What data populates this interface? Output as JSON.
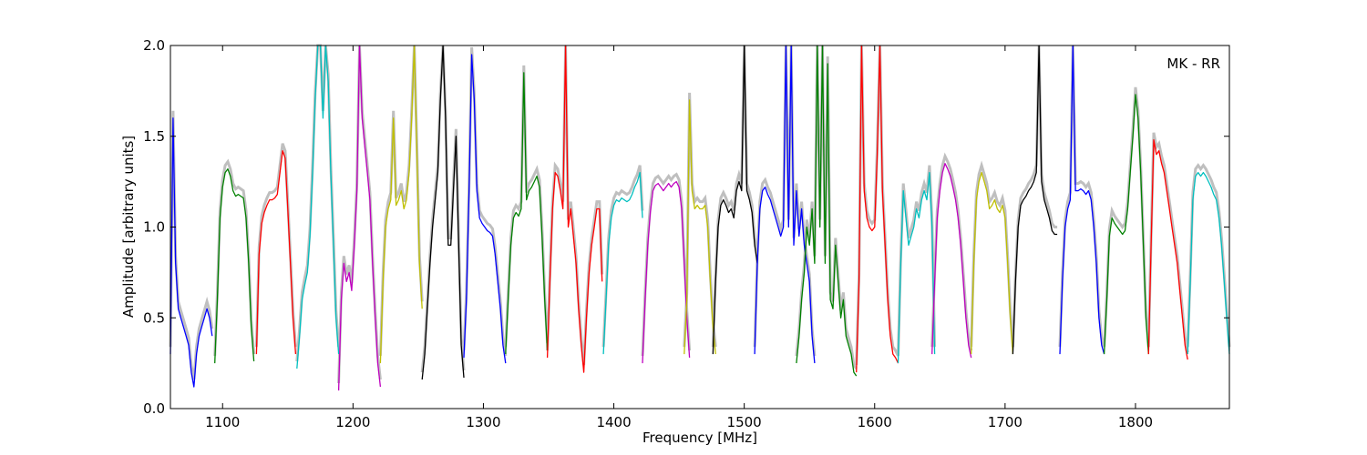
{
  "chart_data": {
    "type": "line",
    "title": "",
    "xlabel": "Frequency [MHz]",
    "ylabel": "Amplitude [arbitrary units]",
    "annotation": "MK - RR",
    "xlim": [
      1060,
      1872
    ],
    "ylim": [
      0.0,
      2.0
    ],
    "xticks": [
      1100,
      1200,
      1300,
      1400,
      1500,
      1600,
      1700,
      1800
    ],
    "yticks": [
      0.0,
      0.5,
      1.0,
      1.5,
      2.0
    ],
    "ytick_labels": [
      "0.0",
      "0.5",
      "1.0",
      "1.5",
      "2.0"
    ],
    "grid": false,
    "background_series_color": "#bfbfbf",
    "series": [
      {
        "color": "#0000ff",
        "x": [
          1060,
          1062,
          1064,
          1066,
          1068,
          1070,
          1072,
          1074,
          1076,
          1078,
          1080,
          1082,
          1084,
          1086,
          1088,
          1090,
          1092
        ],
        "y": [
          0.3,
          1.6,
          0.8,
          0.55,
          0.5,
          0.45,
          0.4,
          0.35,
          0.2,
          0.12,
          0.3,
          0.4,
          0.45,
          0.5,
          0.55,
          0.5,
          0.4
        ]
      },
      {
        "color": "#008000",
        "x": [
          1094,
          1096,
          1098,
          1100,
          1102,
          1104,
          1106,
          1108,
          1110,
          1112,
          1114,
          1116,
          1118,
          1120,
          1122,
          1124
        ],
        "y": [
          0.25,
          0.6,
          1.05,
          1.22,
          1.3,
          1.32,
          1.28,
          1.2,
          1.17,
          1.18,
          1.17,
          1.16,
          1.05,
          0.8,
          0.45,
          0.26
        ]
      },
      {
        "color": "#ff0000",
        "x": [
          1126,
          1128,
          1130,
          1132,
          1134,
          1136,
          1138,
          1140,
          1142,
          1144,
          1146,
          1148,
          1150,
          1152,
          1154,
          1156
        ],
        "y": [
          0.3,
          0.85,
          1.02,
          1.08,
          1.12,
          1.15,
          1.15,
          1.16,
          1.18,
          1.3,
          1.42,
          1.38,
          1.1,
          0.8,
          0.5,
          0.3
        ]
      },
      {
        "color": "#00bfbf",
        "x": [
          1157,
          1159,
          1161,
          1163,
          1165,
          1167,
          1169,
          1171,
          1173,
          1175,
          1177,
          1179,
          1181,
          1183,
          1185,
          1187,
          1189
        ],
        "y": [
          0.22,
          0.4,
          0.6,
          0.68,
          0.75,
          0.95,
          1.3,
          1.7,
          2.0,
          2.0,
          1.6,
          2.0,
          1.8,
          1.3,
          0.9,
          0.5,
          0.3
        ]
      },
      {
        "color": "#bf00bf",
        "x": [
          1189,
          1191,
          1193,
          1195,
          1197,
          1199,
          1201,
          1203,
          1205,
          1207,
          1209,
          1211,
          1213,
          1215,
          1217,
          1219,
          1221
        ],
        "y": [
          0.1,
          0.6,
          0.8,
          0.7,
          0.75,
          0.65,
          0.9,
          1.2,
          2.0,
          1.6,
          1.45,
          1.3,
          1.15,
          0.8,
          0.5,
          0.25,
          0.12
        ]
      },
      {
        "color": "#bfbf00",
        "x": [
          1221,
          1223,
          1225,
          1227,
          1229,
          1231,
          1233,
          1235,
          1237,
          1239,
          1241,
          1243,
          1245,
          1247,
          1249,
          1251,
          1253
        ],
        "y": [
          0.25,
          0.7,
          1.0,
          1.1,
          1.15,
          1.6,
          1.12,
          1.15,
          1.2,
          1.1,
          1.15,
          1.3,
          1.6,
          2.0,
          1.4,
          0.8,
          0.55
        ]
      },
      {
        "color": "#000000",
        "x": [
          1253,
          1255,
          1257,
          1259,
          1261,
          1263,
          1265,
          1267,
          1269,
          1271,
          1273,
          1275,
          1277,
          1279,
          1281,
          1283,
          1285
        ],
        "y": [
          0.16,
          0.3,
          0.55,
          0.8,
          1.0,
          1.15,
          1.3,
          1.7,
          2.0,
          1.6,
          0.9,
          0.9,
          1.2,
          1.5,
          0.9,
          0.35,
          0.17
        ]
      },
      {
        "color": "#0000ff",
        "x": [
          1285,
          1287,
          1289,
          1291,
          1293,
          1295,
          1297,
          1299,
          1301,
          1303,
          1305,
          1307,
          1309,
          1311,
          1313,
          1315,
          1317
        ],
        "y": [
          0.28,
          0.6,
          1.2,
          1.95,
          1.7,
          1.2,
          1.05,
          1.02,
          1.0,
          0.98,
          0.97,
          0.95,
          0.85,
          0.7,
          0.55,
          0.35,
          0.25
        ]
      },
      {
        "color": "#008000",
        "x": [
          1317,
          1319,
          1321,
          1323,
          1325,
          1327,
          1329,
          1331,
          1333,
          1335,
          1337,
          1339,
          1341,
          1343,
          1345,
          1347,
          1349
        ],
        "y": [
          0.3,
          0.6,
          0.9,
          1.05,
          1.08,
          1.06,
          1.1,
          1.85,
          1.15,
          1.2,
          1.22,
          1.25,
          1.28,
          1.22,
          0.95,
          0.6,
          0.32
        ]
      },
      {
        "color": "#ff0000",
        "x": [
          1349,
          1351,
          1353,
          1355,
          1357,
          1359,
          1361,
          1363,
          1365,
          1367,
          1369,
          1371,
          1373,
          1375,
          1377,
          1379,
          1381,
          1383,
          1385,
          1387,
          1389,
          1391
        ],
        "y": [
          0.28,
          0.7,
          1.1,
          1.3,
          1.28,
          1.2,
          1.1,
          2.0,
          1.0,
          1.1,
          0.95,
          0.8,
          0.55,
          0.35,
          0.2,
          0.5,
          0.75,
          0.9,
          1.0,
          1.1,
          1.1,
          0.7
        ]
      },
      {
        "color": "#00bfbf",
        "x": [
          1392,
          1394,
          1396,
          1398,
          1400,
          1402,
          1404,
          1406,
          1408,
          1410,
          1412,
          1414,
          1416,
          1418,
          1420,
          1422
        ],
        "y": [
          0.3,
          0.6,
          0.9,
          1.05,
          1.12,
          1.15,
          1.14,
          1.16,
          1.15,
          1.14,
          1.15,
          1.18,
          1.22,
          1.25,
          1.3,
          1.05
        ]
      },
      {
        "color": "#bf00bf",
        "x": [
          1422,
          1424,
          1426,
          1428,
          1430,
          1432,
          1434,
          1436,
          1438,
          1440,
          1442,
          1444,
          1446,
          1448,
          1450,
          1452,
          1454,
          1456,
          1458
        ],
        "y": [
          0.25,
          0.6,
          0.9,
          1.08,
          1.2,
          1.23,
          1.24,
          1.22,
          1.2,
          1.22,
          1.24,
          1.22,
          1.24,
          1.25,
          1.22,
          1.1,
          0.8,
          0.5,
          0.28
        ]
      },
      {
        "color": "#bfbf00",
        "x": [
          1454,
          1456,
          1458,
          1460,
          1462,
          1464,
          1466,
          1468,
          1470,
          1472,
          1474,
          1476,
          1478
        ],
        "y": [
          0.3,
          0.6,
          1.7,
          1.2,
          1.1,
          1.12,
          1.1,
          1.1,
          1.12,
          1.0,
          0.7,
          0.45,
          0.3
        ]
      },
      {
        "color": "#000000",
        "x": [
          1476,
          1478,
          1480,
          1482,
          1484,
          1486,
          1488,
          1490,
          1492,
          1494,
          1496,
          1498,
          1500,
          1502,
          1504,
          1506,
          1508,
          1510
        ],
        "y": [
          0.3,
          0.7,
          1.0,
          1.12,
          1.15,
          1.12,
          1.08,
          1.1,
          1.05,
          1.2,
          1.25,
          1.2,
          2.0,
          1.2,
          1.15,
          1.08,
          0.9,
          0.8
        ]
      },
      {
        "color": "#0000ff",
        "x": [
          1508,
          1510,
          1512,
          1514,
          1516,
          1518,
          1520,
          1522,
          1524,
          1526,
          1528,
          1530,
          1532,
          1534,
          1536,
          1538,
          1540,
          1542,
          1544,
          1546,
          1548,
          1550,
          1552,
          1554
        ],
        "y": [
          0.3,
          0.8,
          1.1,
          1.2,
          1.22,
          1.18,
          1.15,
          1.1,
          1.05,
          1.0,
          0.95,
          1.0,
          2.0,
          1.0,
          2.0,
          0.9,
          1.2,
          0.95,
          1.1,
          0.9,
          0.8,
          0.7,
          0.4,
          0.25
        ]
      },
      {
        "color": "#008000",
        "x": [
          1540,
          1542,
          1544,
          1546,
          1548,
          1550,
          1552,
          1554,
          1556,
          1558,
          1560,
          1562,
          1564,
          1566,
          1568,
          1570,
          1572,
          1574,
          1576,
          1578,
          1580,
          1582,
          1584,
          1586
        ],
        "y": [
          0.25,
          0.4,
          0.6,
          0.75,
          1.0,
          0.9,
          1.1,
          0.8,
          2.0,
          1.0,
          2.0,
          0.8,
          1.9,
          0.6,
          0.55,
          0.9,
          0.7,
          0.5,
          0.6,
          0.4,
          0.35,
          0.3,
          0.2,
          0.18
        ]
      },
      {
        "color": "#ff0000",
        "x": [
          1586,
          1588,
          1590,
          1592,
          1594,
          1596,
          1598,
          1600,
          1602,
          1604,
          1606,
          1608,
          1610,
          1612,
          1614,
          1616,
          1618
        ],
        "y": [
          0.2,
          0.7,
          2.0,
          1.2,
          1.05,
          1.0,
          0.98,
          1.0,
          1.4,
          2.0,
          1.2,
          0.9,
          0.6,
          0.4,
          0.3,
          0.28,
          0.25
        ]
      },
      {
        "color": "#00bfbf",
        "x": [
          1618,
          1620,
          1622,
          1624,
          1626,
          1628,
          1630,
          1632,
          1634,
          1636,
          1638,
          1640,
          1642,
          1644,
          1646
        ],
        "y": [
          0.25,
          0.8,
          1.2,
          1.05,
          0.9,
          0.95,
          1.0,
          1.1,
          1.05,
          1.15,
          1.2,
          1.15,
          1.3,
          1.0,
          0.3
        ]
      },
      {
        "color": "#bf00bf",
        "x": [
          1644,
          1646,
          1648,
          1650,
          1652,
          1654,
          1656,
          1658,
          1660,
          1662,
          1664,
          1666,
          1668,
          1670,
          1672,
          1674
        ],
        "y": [
          0.3,
          0.7,
          1.05,
          1.2,
          1.3,
          1.35,
          1.32,
          1.28,
          1.22,
          1.15,
          1.05,
          0.9,
          0.7,
          0.5,
          0.35,
          0.28
        ]
      },
      {
        "color": "#bfbf00",
        "x": [
          1674,
          1676,
          1678,
          1680,
          1682,
          1684,
          1686,
          1688,
          1690,
          1692,
          1694,
          1696,
          1698,
          1700,
          1702,
          1704,
          1706
        ],
        "y": [
          0.3,
          0.8,
          1.15,
          1.25,
          1.3,
          1.25,
          1.2,
          1.1,
          1.12,
          1.15,
          1.1,
          1.08,
          1.12,
          1.05,
          0.8,
          0.5,
          0.3
        ]
      },
      {
        "color": "#000000",
        "x": [
          1706,
          1708,
          1710,
          1712,
          1714,
          1716,
          1718,
          1720,
          1722,
          1724,
          1726,
          1728,
          1730,
          1732,
          1734,
          1736,
          1738,
          1740
        ],
        "y": [
          0.3,
          0.7,
          1.0,
          1.12,
          1.15,
          1.17,
          1.2,
          1.22,
          1.25,
          1.3,
          2.0,
          1.25,
          1.15,
          1.1,
          1.05,
          0.98,
          0.96,
          0.96
        ]
      },
      {
        "color": "#0000ff",
        "x": [
          1742,
          1744,
          1746,
          1748,
          1750,
          1752,
          1754,
          1756,
          1758,
          1760,
          1762,
          1764,
          1766,
          1768,
          1770,
          1772,
          1774,
          1776
        ],
        "y": [
          0.3,
          0.7,
          1.0,
          1.1,
          1.15,
          2.0,
          1.2,
          1.2,
          1.21,
          1.2,
          1.18,
          1.2,
          1.15,
          1.0,
          0.8,
          0.5,
          0.35,
          0.3
        ]
      },
      {
        "color": "#008000",
        "x": [
          1776,
          1778,
          1780,
          1782,
          1784,
          1786,
          1788,
          1790,
          1792,
          1794,
          1796,
          1798,
          1800,
          1802,
          1804,
          1806,
          1808,
          1810
        ],
        "y": [
          0.3,
          0.6,
          0.95,
          1.05,
          1.02,
          1.0,
          0.98,
          0.96,
          0.98,
          1.1,
          1.3,
          1.5,
          1.73,
          1.6,
          1.3,
          0.9,
          0.5,
          0.3
        ]
      },
      {
        "color": "#ff0000",
        "x": [
          1810,
          1812,
          1814,
          1816,
          1818,
          1820,
          1822,
          1824,
          1826,
          1828,
          1830,
          1832,
          1834,
          1836,
          1838,
          1840
        ],
        "y": [
          0.3,
          0.9,
          1.48,
          1.4,
          1.42,
          1.35,
          1.3,
          1.2,
          1.1,
          1.0,
          0.9,
          0.8,
          0.65,
          0.5,
          0.35,
          0.27
        ]
      },
      {
        "color": "#00bfbf",
        "x": [
          1840,
          1842,
          1844,
          1846,
          1848,
          1850,
          1852,
          1854,
          1856,
          1858,
          1860,
          1862,
          1864,
          1866,
          1868,
          1870,
          1872
        ],
        "y": [
          0.3,
          0.7,
          1.15,
          1.28,
          1.3,
          1.28,
          1.3,
          1.28,
          1.25,
          1.22,
          1.18,
          1.15,
          1.05,
          0.9,
          0.7,
          0.5,
          0.3
        ]
      }
    ]
  }
}
